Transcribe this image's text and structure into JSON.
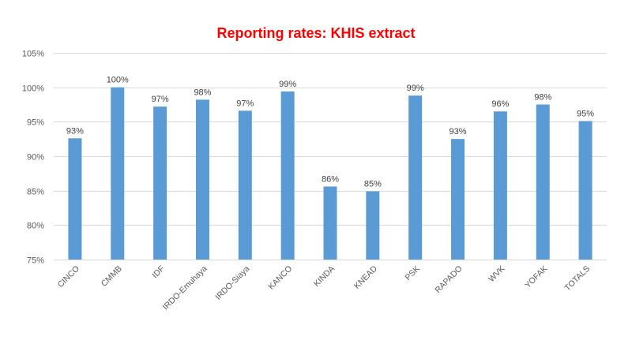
{
  "chart_data": {
    "type": "bar",
    "title": "Reporting rates: KHIS extract",
    "categories": [
      "CINCO",
      "CMMB",
      "IDF",
      "IRDO-Emuhaya",
      "IRDO-Siaya",
      "KANCO",
      "KINDA",
      "KNEAD",
      "PSK",
      "RAPADO",
      "WVK",
      "YOFAK",
      "TOTALS"
    ],
    "values": [
      92.6,
      100.0,
      97.2,
      98.2,
      96.6,
      99.4,
      85.6,
      84.9,
      98.8,
      92.5,
      96.5,
      97.5,
      95.1
    ],
    "data_labels": [
      "93%",
      "100%",
      "97%",
      "98%",
      "97%",
      "99%",
      "86%",
      "85%",
      "99%",
      "93%",
      "96%",
      "98%",
      "95%"
    ],
    "ylim": [
      75,
      105
    ],
    "yticks": [
      75,
      80,
      85,
      90,
      95,
      100,
      105
    ],
    "ytick_labels": [
      "75%",
      "80%",
      "85%",
      "90%",
      "95%",
      "100%",
      "105%"
    ],
    "xlabel": "",
    "ylabel": "",
    "grid": true,
    "legend": "none",
    "bar_color": "#5b9bd5",
    "title_color": "#ff0000",
    "grid_color": "#d9d9d9",
    "label_color": "#404040",
    "tick_color": "#595959"
  }
}
